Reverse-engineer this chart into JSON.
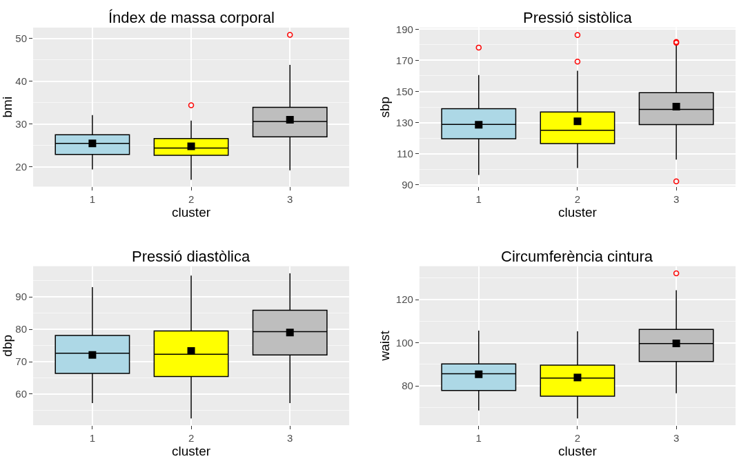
{
  "chart_data": [
    {
      "type": "box",
      "title": "Índex de massa corporal",
      "xlabel": "cluster",
      "ylabel": "bmi",
      "categories": [
        "1",
        "2",
        "3"
      ],
      "colors": [
        "#add8e6",
        "#ffff00",
        "#bebebe"
      ],
      "marker": "square",
      "grid": true,
      "ylim": [
        15.4,
        52.5
      ],
      "yticks": [
        20,
        30,
        40,
        50
      ],
      "boxes": [
        {
          "low": 19.4,
          "q1": 22.9,
          "median": 25.5,
          "q3": 27.5,
          "high": 32.1,
          "mean": 25.5
        },
        {
          "low": 17.0,
          "q1": 22.7,
          "median": 24.4,
          "q3": 26.6,
          "high": 30.8,
          "mean": 24.8,
          "outliers": [
            34.4
          ]
        },
        {
          "low": 19.2,
          "q1": 27.0,
          "median": 30.6,
          "q3": 33.9,
          "high": 43.8,
          "mean": 31.0,
          "outliers": [
            50.8
          ]
        }
      ]
    },
    {
      "type": "box",
      "title": "Pressió sistòlica",
      "xlabel": "cluster",
      "ylabel": "sbp",
      "categories": [
        "1",
        "2",
        "3"
      ],
      "colors": [
        "#add8e6",
        "#ffff00",
        "#bebebe"
      ],
      "marker": "square",
      "grid": true,
      "ylim": [
        88.9,
        191
      ],
      "yticks": [
        90,
        110,
        130,
        150,
        170,
        190
      ],
      "boxes": [
        {
          "low": 96.4,
          "q1": 119.6,
          "median": 128.9,
          "q3": 138.9,
          "high": 160.5,
          "mean": 128.6,
          "outliers": [
            178.2
          ]
        },
        {
          "low": 100.8,
          "q1": 116.5,
          "median": 125.1,
          "q3": 136.8,
          "high": 163.3,
          "mean": 130.8,
          "outliers": [
            186.2,
            169.2
          ]
        },
        {
          "low": 106.2,
          "q1": 128.7,
          "median": 138.5,
          "q3": 149.2,
          "high": 179.9,
          "mean": 140.3,
          "outliers": [
            181.8,
            181.2,
            92.3
          ]
        }
      ]
    },
    {
      "type": "box",
      "title": "Pressió diastòlica",
      "xlabel": "cluster",
      "ylabel": "dbp",
      "categories": [
        "1",
        "2",
        "3"
      ],
      "colors": [
        "#add8e6",
        "#ffff00",
        "#bebebe"
      ],
      "marker": "square",
      "grid": true,
      "ylim": [
        50.4,
        99.5
      ],
      "yticks": [
        60,
        70,
        80,
        90
      ],
      "boxes": [
        {
          "low": 57.2,
          "q1": 66.4,
          "median": 72.6,
          "q3": 78.1,
          "high": 93.0,
          "mean": 72.1
        },
        {
          "low": 52.5,
          "q1": 65.4,
          "median": 72.3,
          "q3": 79.5,
          "high": 96.6,
          "mean": 73.3
        },
        {
          "low": 57.2,
          "q1": 72.1,
          "median": 79.3,
          "q3": 85.9,
          "high": 97.3,
          "mean": 79.0
        }
      ]
    },
    {
      "type": "box",
      "title": "Circumferència cintura",
      "xlabel": "cluster",
      "ylabel": "waist",
      "categories": [
        "1",
        "2",
        "3"
      ],
      "colors": [
        "#add8e6",
        "#ffff00",
        "#bebebe"
      ],
      "marker": "square",
      "grid": true,
      "ylim": [
        61.8,
        135.5
      ],
      "yticks": [
        80,
        100,
        120
      ],
      "boxes": [
        {
          "low": 68.6,
          "q1": 77.9,
          "median": 85.6,
          "q3": 90.2,
          "high": 105.6,
          "mean": 85.4
        },
        {
          "low": 64.9,
          "q1": 75.2,
          "median": 83.6,
          "q3": 89.6,
          "high": 105.3,
          "mean": 83.9
        },
        {
          "low": 76.6,
          "q1": 91.3,
          "median": 99.6,
          "q3": 106.2,
          "high": 124.3,
          "mean": 99.7,
          "outliers": [
            132.2
          ]
        }
      ]
    }
  ]
}
